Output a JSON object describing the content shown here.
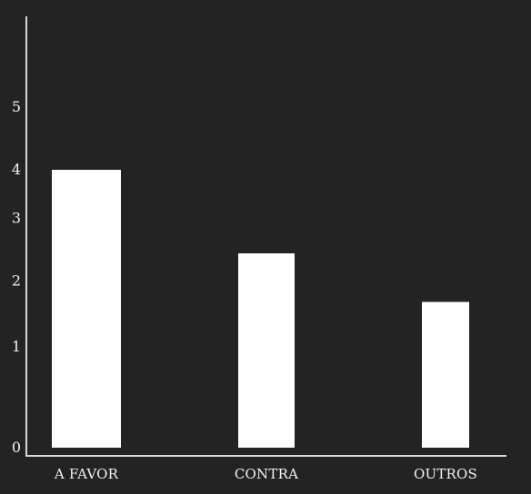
{
  "colors": {
    "background": "#232323",
    "bar": "#ffffff",
    "axis": "#d9d9d9",
    "text": "#f2f2f2"
  },
  "chart_data": {
    "type": "bar",
    "title": "",
    "xlabel": "",
    "ylabel": "",
    "categories": [
      "A FAVOR",
      "CONTRA",
      "OUTROS"
    ],
    "values": [
      4.0,
      2.8,
      2.1
    ],
    "yticks": [
      "0",
      "1",
      "2",
      "3",
      "4",
      "5"
    ],
    "ytick_values": [
      0.0,
      1.45,
      2.4,
      3.3,
      4.0,
      4.9
    ],
    "grid": false,
    "legend": "none"
  }
}
